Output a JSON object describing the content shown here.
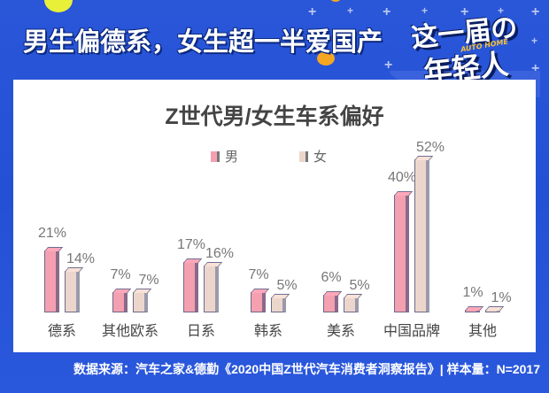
{
  "header": {
    "headline": "男生偏德系，女生超一半爱国产",
    "badge_line1": "这一届の",
    "badge_line2": "年轻人",
    "badge_logo": "AUTO HOME"
  },
  "colors": {
    "background": "#2a56d8",
    "panel": "#ffffff",
    "male_bar": "#f4a0b0",
    "female_bar": "#ecd6cc",
    "accent_yellow": "#e8f038",
    "accent_orange": "#f5a623"
  },
  "legend": {
    "male": "男",
    "female": "女"
  },
  "chart_data": {
    "type": "bar",
    "title": "Z世代男/女生车系偏好",
    "categories": [
      "德系",
      "其他欧系",
      "日系",
      "韩系",
      "美系",
      "中国品牌",
      "其他"
    ],
    "series": [
      {
        "name": "男",
        "values": [
          21,
          7,
          17,
          7,
          6,
          40,
          1
        ],
        "labels": [
          "21%",
          "7%",
          "17%",
          "7%",
          "6%",
          "40%",
          "1%"
        ]
      },
      {
        "name": "女",
        "values": [
          14,
          7,
          16,
          5,
          5,
          52,
          1
        ],
        "labels": [
          "14%",
          "7%",
          "16%",
          "5%",
          "5%",
          "52%",
          "1%"
        ]
      }
    ],
    "xlabel": "",
    "ylabel": "",
    "unit": "%",
    "ylim": [
      0,
      55
    ],
    "grid": false,
    "legend_position": "top"
  },
  "footer": {
    "source": "数据来源：汽车之家&德勤《2020中国Z世代汽车消费者洞察报告》| 样本量：N=2017"
  }
}
